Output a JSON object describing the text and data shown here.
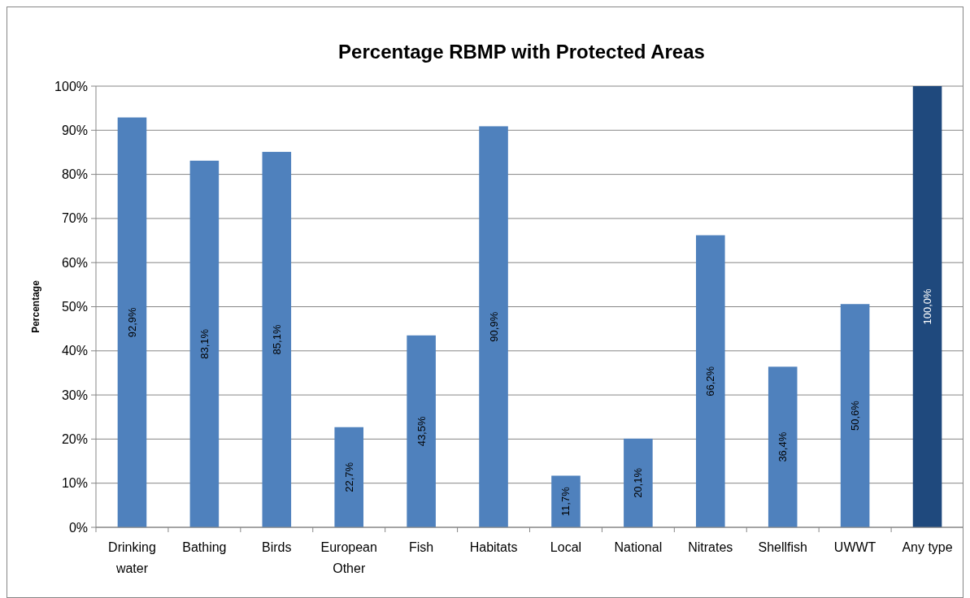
{
  "chart_data": {
    "type": "bar",
    "title": "Percentage RBMP with Protected Areas",
    "ylabel": "Percentage",
    "categories": [
      "Drinking water",
      "Bathing",
      "Birds",
      "European Other",
      "Fish",
      "Habitats",
      "Local",
      "National",
      "Nitrates",
      "Shellfish",
      "UWWT",
      "Any type"
    ],
    "values": [
      92.9,
      83.1,
      85.1,
      22.7,
      43.5,
      90.9,
      11.7,
      20.1,
      66.2,
      36.4,
      50.6,
      100.0
    ],
    "colors": [
      "#4f81bd",
      "#4f81bd",
      "#4f81bd",
      "#4f81bd",
      "#4f81bd",
      "#4f81bd",
      "#4f81bd",
      "#4f81bd",
      "#4f81bd",
      "#4f81bd",
      "#4f81bd",
      "#1f497d"
    ],
    "value_labels": [
      "92,9%",
      "83,1%",
      "85,1%",
      "22,7%",
      "43,5%",
      "90,9%",
      "11,7%",
      "20,1%",
      "66,2%",
      "36,4%",
      "50,6%",
      "100,0%"
    ],
    "ylim": [
      0,
      100
    ],
    "yticks": [
      {
        "value": 0,
        "label": "0%"
      },
      {
        "value": 10,
        "label": "10%"
      },
      {
        "value": 20,
        "label": "20%"
      },
      {
        "value": 30,
        "label": "30%"
      },
      {
        "value": 40,
        "label": "40%"
      },
      {
        "value": 50,
        "label": "50%"
      },
      {
        "value": 60,
        "label": "60%"
      },
      {
        "value": 70,
        "label": "70%"
      },
      {
        "value": 80,
        "label": "80%"
      },
      {
        "value": 90,
        "label": "90%"
      },
      {
        "value": 100,
        "label": "100%"
      }
    ],
    "grid": "y"
  }
}
